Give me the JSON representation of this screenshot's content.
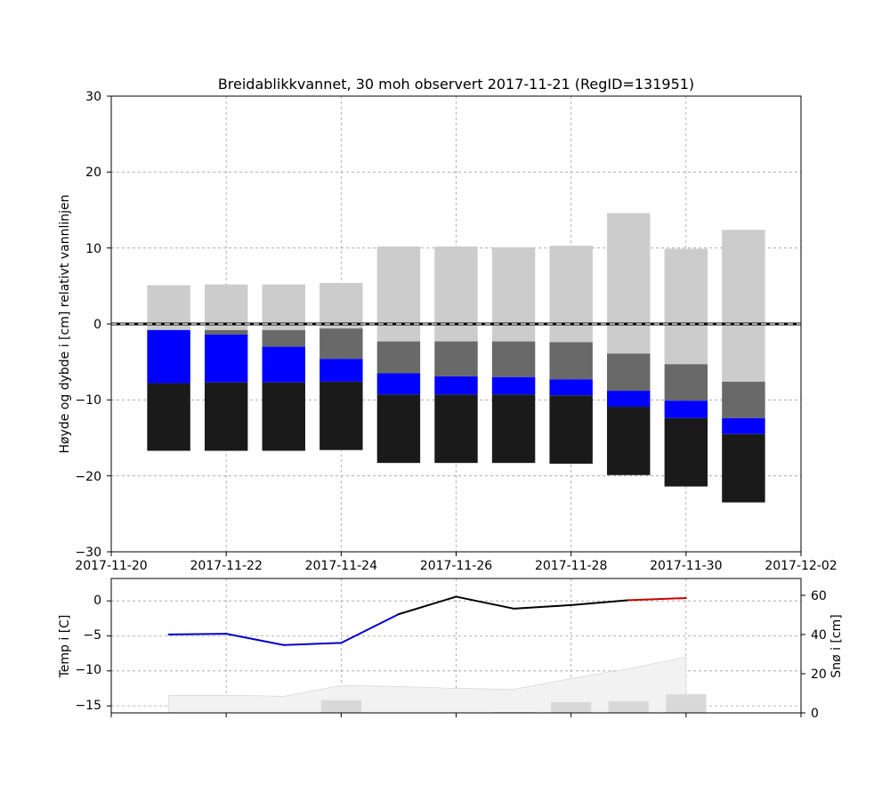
{
  "chart_data": [
    {
      "type": "bar",
      "title": "Breidablikkvannet, 30 moh observert 2017-11-21 (RegID=131951)",
      "xlabel": "",
      "ylabel": "Høyde og dybde i [cm] relativt vannlinjen",
      "xlim": [
        "2017-11-20",
        "2017-12-02"
      ],
      "ylim": [
        -30,
        30
      ],
      "x_ticks": [
        "2017-11-20",
        "2017-11-22",
        "2017-11-24",
        "2017-11-26",
        "2017-11-28",
        "2017-11-30",
        "2017-12-02"
      ],
      "y_ticks": [
        "30",
        "20",
        "10",
        "0",
        "−10",
        "−20",
        "−30"
      ],
      "grid": true,
      "waterline": 0,
      "colors": {
        "snow": "#cccccc",
        "slush": "#696969",
        "water": "#0000ff",
        "ice": "#1a1a1a"
      },
      "dates": [
        "2017-11-21",
        "2017-11-22",
        "2017-11-23",
        "2017-11-24",
        "2017-11-25",
        "2017-11-26",
        "2017-11-27",
        "2017-11-28",
        "2017-11-29",
        "2017-11-30",
        "2017-12-01"
      ],
      "layers": [
        [
          {
            "type": "snow",
            "top": 5.1,
            "bottom": -0.8
          },
          {
            "type": "water",
            "top": -0.8,
            "bottom": -7.8
          },
          {
            "type": "ice",
            "top": -7.8,
            "bottom": -16.7
          }
        ],
        [
          {
            "type": "snow",
            "top": 5.2,
            "bottom": -0.8
          },
          {
            "type": "slush",
            "top": -0.8,
            "bottom": -1.4
          },
          {
            "type": "water",
            "top": -1.4,
            "bottom": -7.7
          },
          {
            "type": "ice",
            "top": -7.7,
            "bottom": -16.7
          }
        ],
        [
          {
            "type": "snow",
            "top": 5.2,
            "bottom": -0.8
          },
          {
            "type": "slush",
            "top": -0.8,
            "bottom": -3.0
          },
          {
            "type": "water",
            "top": -3.0,
            "bottom": -7.7
          },
          {
            "type": "ice",
            "top": -7.7,
            "bottom": -16.7
          }
        ],
        [
          {
            "type": "snow",
            "top": 5.4,
            "bottom": -0.6
          },
          {
            "type": "slush",
            "top": -0.6,
            "bottom": -4.6
          },
          {
            "type": "water",
            "top": -4.6,
            "bottom": -7.6
          },
          {
            "type": "ice",
            "top": -7.6,
            "bottom": -16.6
          }
        ],
        [
          {
            "type": "snow",
            "top": 10.2,
            "bottom": -2.3
          },
          {
            "type": "slush",
            "top": -2.3,
            "bottom": -6.5
          },
          {
            "type": "water",
            "top": -6.5,
            "bottom": -9.3
          },
          {
            "type": "ice",
            "top": -9.3,
            "bottom": -18.3
          }
        ],
        [
          {
            "type": "snow",
            "top": 10.2,
            "bottom": -2.3
          },
          {
            "type": "slush",
            "top": -2.3,
            "bottom": -6.9
          },
          {
            "type": "water",
            "top": -6.9,
            "bottom": -9.3
          },
          {
            "type": "ice",
            "top": -9.3,
            "bottom": -18.3
          }
        ],
        [
          {
            "type": "snow",
            "top": 10.1,
            "bottom": -2.3
          },
          {
            "type": "slush",
            "top": -2.3,
            "bottom": -7.0
          },
          {
            "type": "water",
            "top": -7.0,
            "bottom": -9.3
          },
          {
            "type": "ice",
            "top": -9.3,
            "bottom": -18.3
          }
        ],
        [
          {
            "type": "snow",
            "top": 10.3,
            "bottom": -2.4
          },
          {
            "type": "slush",
            "top": -2.4,
            "bottom": -7.3
          },
          {
            "type": "water",
            "top": -7.3,
            "bottom": -9.4
          },
          {
            "type": "ice",
            "top": -9.4,
            "bottom": -18.4
          }
        ],
        [
          {
            "type": "snow",
            "top": 14.6,
            "bottom": -3.9
          },
          {
            "type": "slush",
            "top": -3.9,
            "bottom": -8.8
          },
          {
            "type": "water",
            "top": -8.8,
            "bottom": -10.9
          },
          {
            "type": "ice",
            "top": -10.9,
            "bottom": -19.9
          }
        ],
        [
          {
            "type": "snow",
            "top": 9.9,
            "bottom": -5.3
          },
          {
            "type": "slush",
            "top": -5.3,
            "bottom": -10.1
          },
          {
            "type": "water",
            "top": -10.1,
            "bottom": -12.4
          },
          {
            "type": "ice",
            "top": -12.4,
            "bottom": -21.4
          }
        ],
        [
          {
            "type": "snow",
            "top": 12.4,
            "bottom": -7.6
          },
          {
            "type": "slush",
            "top": -7.6,
            "bottom": -12.4
          },
          {
            "type": "water",
            "top": -12.4,
            "bottom": -14.5
          },
          {
            "type": "ice",
            "top": -14.5,
            "bottom": -23.5
          }
        ]
      ]
    },
    {
      "type": "line",
      "xlabel": "",
      "ylabel": "Temp i [C]",
      "y2label": "Snø i [cm]",
      "xlim": [
        "2017-11-20",
        "2017-12-02"
      ],
      "ylim": [
        -16,
        3.2
      ],
      "y2lim": [
        0,
        68.6
      ],
      "y_ticks": [
        "0",
        "−5",
        "−10",
        "−15"
      ],
      "y2_ticks": [
        "60",
        "40",
        "20",
        "0"
      ],
      "grid": true,
      "temperature": {
        "x": [
          "2017-11-21",
          "2017-11-22",
          "2017-11-23",
          "2017-11-24",
          "2017-11-25",
          "2017-11-26",
          "2017-11-27",
          "2017-11-28",
          "2017-11-29",
          "2017-11-30"
        ],
        "values": [
          -4.8,
          -4.7,
          -6.3,
          -6.0,
          -1.9,
          0.6,
          -1.1,
          -0.6,
          0.1,
          0.4
        ],
        "colors": [
          "#0000cc",
          "#0000cc",
          "#0000cc",
          "#0000cc",
          "#000000",
          "#000000",
          "#000000",
          "#000000",
          "#cc0000"
        ]
      },
      "snow_depth": {
        "x": [
          "2017-11-21",
          "2017-11-22",
          "2017-11-23",
          "2017-11-24",
          "2017-11-25",
          "2017-11-26",
          "2017-11-27",
          "2017-11-28",
          "2017-11-29",
          "2017-11-30"
        ],
        "values": [
          9,
          9,
          8.5,
          14,
          13.5,
          12.5,
          12,
          17.5,
          22.5,
          28.5
        ],
        "color": "#f2f2f2"
      },
      "new_snow": {
        "x": [
          "2017-11-21",
          "2017-11-24",
          "2017-11-27",
          "2017-11-28",
          "2017-11-29",
          "2017-11-30"
        ],
        "values": [
          0,
          6.5,
          0.5,
          5.5,
          6,
          9.5
        ],
        "color": "#d9d9d9"
      }
    }
  ]
}
